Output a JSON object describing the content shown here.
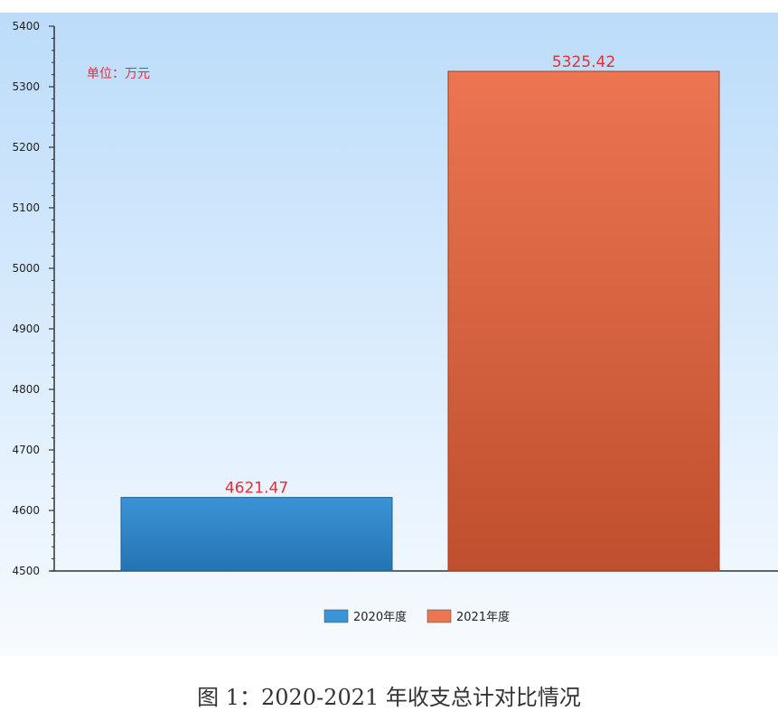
{
  "caption": "图 1：2020-2021 年收支总计对比情况",
  "colors": {
    "bg_top": "#bcdcfa",
    "bg_bottom": "#f7fbff",
    "bar_2020_top": "#3b94d6",
    "bar_2020_bottom": "#2474b4",
    "bar_2021_top": "#ec7552",
    "bar_2021_bottom": "#bf4f2e",
    "data_label": "#e0303a",
    "axis": "#333333"
  },
  "chart_data": {
    "type": "bar",
    "title": "",
    "xlabel": "",
    "ylabel": "",
    "unit_note": "单位：万元",
    "categories": [
      "2020年度",
      "2021年度"
    ],
    "values": [
      4621.47,
      5325.42
    ],
    "data_labels": [
      "4621.47",
      "5325.42"
    ],
    "ylim": [
      4500,
      5400
    ],
    "yticks": [
      4500,
      4600,
      4700,
      4800,
      4900,
      5000,
      5100,
      5200,
      5300,
      5400
    ],
    "legend": {
      "position": "bottom",
      "entries": [
        "2020年度",
        "2021年度"
      ]
    },
    "grid": false
  }
}
